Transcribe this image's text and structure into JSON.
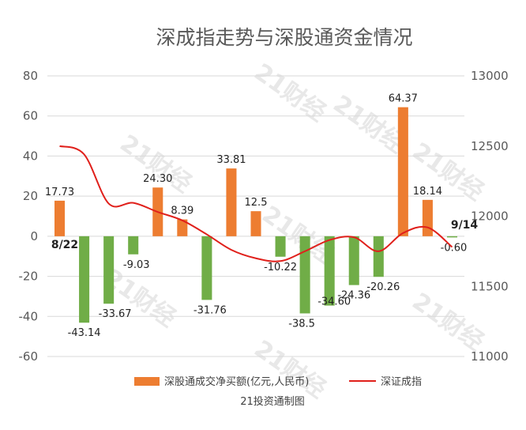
{
  "chart_data": {
    "type": "bar+line",
    "title": "深成指走势与深股通资金情况",
    "series": [
      {
        "name": "深股通成交净买额(亿元,人民币)",
        "axis": "left",
        "values": [
          17.73,
          -43.14,
          -33.67,
          -9.03,
          24.3,
          8.39,
          -31.76,
          33.81,
          12.5,
          -10.22,
          -38.5,
          -34.6,
          -24.36,
          -20.26,
          64.37,
          18.14,
          -0.6
        ],
        "labels": [
          "17.73",
          "-43.14",
          "-33.67",
          "-9.03",
          "24.30",
          "8.39",
          "-31.76",
          "33.81",
          "12.5",
          "-10.22",
          "-38.5",
          "-34.60",
          "-24.36",
          "-20.26",
          "64.37",
          "18.14",
          "-0.60"
        ],
        "positive_color": "#ed7d31",
        "negative_color": "#70ad47"
      },
      {
        "name": "深证成指",
        "axis": "right",
        "type": "line",
        "color": "#e0201b",
        "values": [
          12500,
          12440,
          12090,
          12095,
          12030,
          11970,
          11870,
          11760,
          11700,
          11680,
          11750,
          11830,
          11850,
          11750,
          11880,
          11920,
          11780
        ]
      }
    ],
    "left_axis": {
      "ticks": [
        "80",
        "60",
        "40",
        "20",
        "0",
        "-20",
        "-40",
        "-60"
      ],
      "ylim": [
        -60,
        80
      ]
    },
    "right_axis": {
      "ticks": [
        "13000",
        "12500",
        "12000",
        "11500",
        "11000"
      ],
      "ylim": [
        11000,
        13000
      ]
    },
    "annotations": {
      "start_date": "8/22",
      "end_date": "9/14"
    },
    "grid": true,
    "legend_position": "bottom",
    "credit": "21投资通制图",
    "watermark": "21财经"
  }
}
